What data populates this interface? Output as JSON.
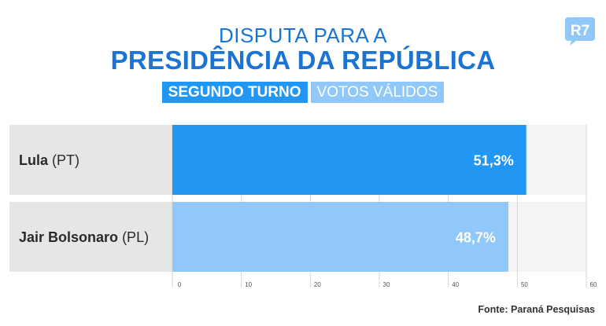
{
  "header": {
    "line1": "DISPUTA PARA A",
    "line2": "PRESIDÊNCIA DA REPÚBLICA",
    "badge_round": "SEGUNDO TURNO",
    "badge_votes": "VOTOS VÁLIDOS"
  },
  "logo": {
    "text": "R7",
    "color": "#90c9f9"
  },
  "colors": {
    "title": "#1b73d3",
    "bar_primary": "#2196f3",
    "bar_secondary": "#90c9f9",
    "row_bg": "#f4f4f4",
    "label_bg": "#e6e6e6"
  },
  "rows": [
    {
      "name": "Lula",
      "party": "(PT)"
    },
    {
      "name": "Jair Bolsonaro",
      "party": "(PL)"
    }
  ],
  "chart_data": {
    "type": "bar",
    "orientation": "horizontal",
    "categories": [
      "Lula (PT)",
      "Jair Bolsonaro (PL)"
    ],
    "values": [
      51.3,
      48.7
    ],
    "value_labels": [
      "51,3%",
      "48,7%"
    ],
    "xlim": [
      0,
      60
    ],
    "xticks": [
      "0",
      "10",
      "20",
      "30",
      "40",
      "50",
      "60"
    ],
    "grid": true,
    "title": "DISPUTA PARA A PRESIDÊNCIA DA REPÚBLICA",
    "subtitle": "SEGUNDO TURNO | VOTOS VÁLIDOS"
  },
  "footer": {
    "source": "Fonte: Paraná Pesquisas"
  }
}
